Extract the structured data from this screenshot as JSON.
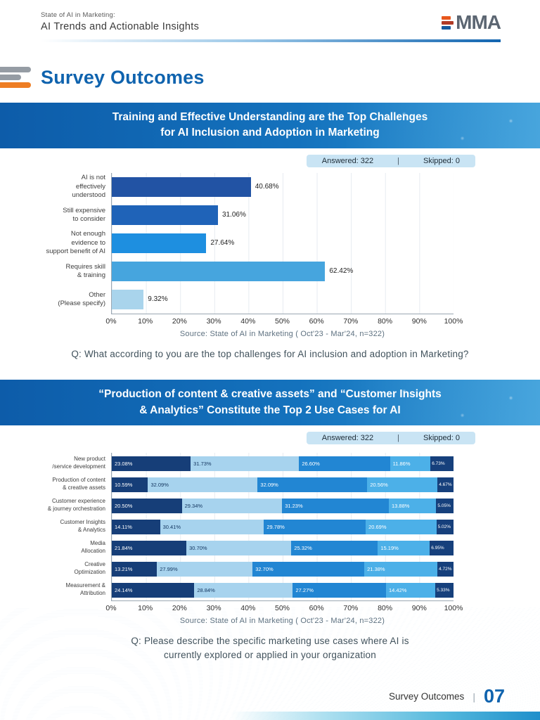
{
  "header": {
    "kicker": "State of AI in Marketing:",
    "title": "AI Trends and Actionable Insights",
    "logo": {
      "text": "MMA"
    }
  },
  "section": {
    "title": "Survey Outcomes"
  },
  "survey1": {
    "banner": [
      "Training and Effective Understanding are the Top Challenges",
      "for AI Inclusion and Adoption in Marketing"
    ],
    "answered": "Answered: 322",
    "divider": "|",
    "skipped": "Skipped: 0",
    "source": "Source: State of AI in Marketing ( Oct'23 - Mar'24, n=322)",
    "question": "Q: What according to you are the top challenges for AI inclusion and adoption in Marketing?"
  },
  "survey2": {
    "banner": [
      "“Production of content & creative assets” and “Customer Insights",
      "& Analytics” Constitute the Top 2 Use Cases for AI"
    ],
    "answered": "Answered: 322",
    "divider": "|",
    "skipped": "Skipped: 0",
    "source": "Source: State of AI in Marketing ( Oct'23 - Mar'24, n=322)",
    "question": [
      "Q: Please describe the specific marketing use cases where AI is",
      "currently explored or applied in your organization"
    ]
  },
  "footer": {
    "label": "Survey Outcomes",
    "divider": "|",
    "page": "07"
  },
  "chart_data": [
    {
      "type": "bar",
      "orientation": "horizontal",
      "title": "Training and Effective Understanding are the Top Challenges for AI Inclusion and Adoption in Marketing",
      "answered": 322,
      "skipped": 0,
      "categories": [
        [
          "AI is not",
          "effectively understood"
        ],
        [
          "Still expensive",
          "to consider"
        ],
        [
          "Not enough",
          "evidence to",
          "support benefit of AI"
        ],
        [
          "Requires skill",
          "& training"
        ],
        [
          "Other",
          "(Please specify)"
        ]
      ],
      "values": [
        40.68,
        31.06,
        27.64,
        62.42,
        9.32
      ],
      "value_labels": [
        "40.68%",
        "31.06%",
        "27.64%",
        "62.42%",
        "9.32%"
      ],
      "bar_colors": [
        "#2253a4",
        "#1f63b8",
        "#1e8fe0",
        "#46a5de",
        "#a9d4ec"
      ],
      "xlim": [
        0,
        100
      ],
      "x_ticks": [
        "0%",
        "10%",
        "20%",
        "30%",
        "40%",
        "50%",
        "60%",
        "70%",
        "80%",
        "90%",
        "100%"
      ],
      "grid": true,
      "legend": "none"
    },
    {
      "type": "bar",
      "subtype": "stacked",
      "orientation": "horizontal",
      "title": "“Production of content & creative assets” and “Customer Insights & Analytics” Constitute the Top 2 Use Cases for AI",
      "answered": 322,
      "skipped": 0,
      "categories": [
        [
          "New product",
          "/service development"
        ],
        [
          "Production of content",
          "& creative assets"
        ],
        [
          "Customer experience",
          "& journey orchestration"
        ],
        [
          "Customer Insights",
          "& Analytics"
        ],
        [
          "Media",
          "Allocation"
        ],
        [
          "Creative",
          "Optimization"
        ],
        [
          "Measurement &",
          "Attribution"
        ]
      ],
      "rows": [
        [
          23.08,
          31.73,
          26.6,
          11.86,
          6.73
        ],
        [
          10.59,
          32.09,
          32.09,
          20.56,
          4.67
        ],
        [
          20.5,
          29.34,
          31.23,
          13.88,
          5.05
        ],
        [
          14.11,
          30.41,
          29.78,
          20.69,
          5.02
        ],
        [
          21.84,
          30.7,
          25.32,
          15.19,
          6.95
        ],
        [
          13.21,
          27.99,
          32.7,
          21.38,
          4.72
        ],
        [
          24.14,
          28.84,
          27.27,
          14.42,
          5.33
        ]
      ],
      "row_labels": [
        [
          "23.08%",
          "31.73%",
          "26.60%",
          "11.86%",
          "6.73%"
        ],
        [
          "10.59%",
          "32.09%",
          "32.09%",
          "20.56%",
          "4.67%"
        ],
        [
          "20.50%",
          "29.34%",
          "31.23%",
          "13.88%",
          "5.05%"
        ],
        [
          "14.11%",
          "30.41%",
          "29.78%",
          "20.69%",
          "5.02%"
        ],
        [
          "21.84%",
          "30.70%",
          "25.32%",
          "15.19%",
          "6.95%"
        ],
        [
          "13.21%",
          "27.99%",
          "32.70%",
          "21.38%",
          "4.72%"
        ],
        [
          "24.14%",
          "28.84%",
          "27.27%",
          "14.42%",
          "5.33%"
        ]
      ],
      "segment_colors": [
        "#163e78",
        "#a7d3ee",
        "#2286d3",
        "#4cb0e8",
        "#16407c"
      ],
      "segment_label_colors": [
        "#ffffff",
        "#13355e",
        "#ffffff",
        "#ffffff",
        "#ffffff"
      ],
      "xlim": [
        0,
        100
      ],
      "x_ticks": [
        "0%",
        "10%",
        "20%",
        "30%",
        "40%",
        "50%",
        "60%",
        "70%",
        "80%",
        "90%",
        "100%"
      ],
      "grid": true,
      "legend": "none"
    }
  ]
}
